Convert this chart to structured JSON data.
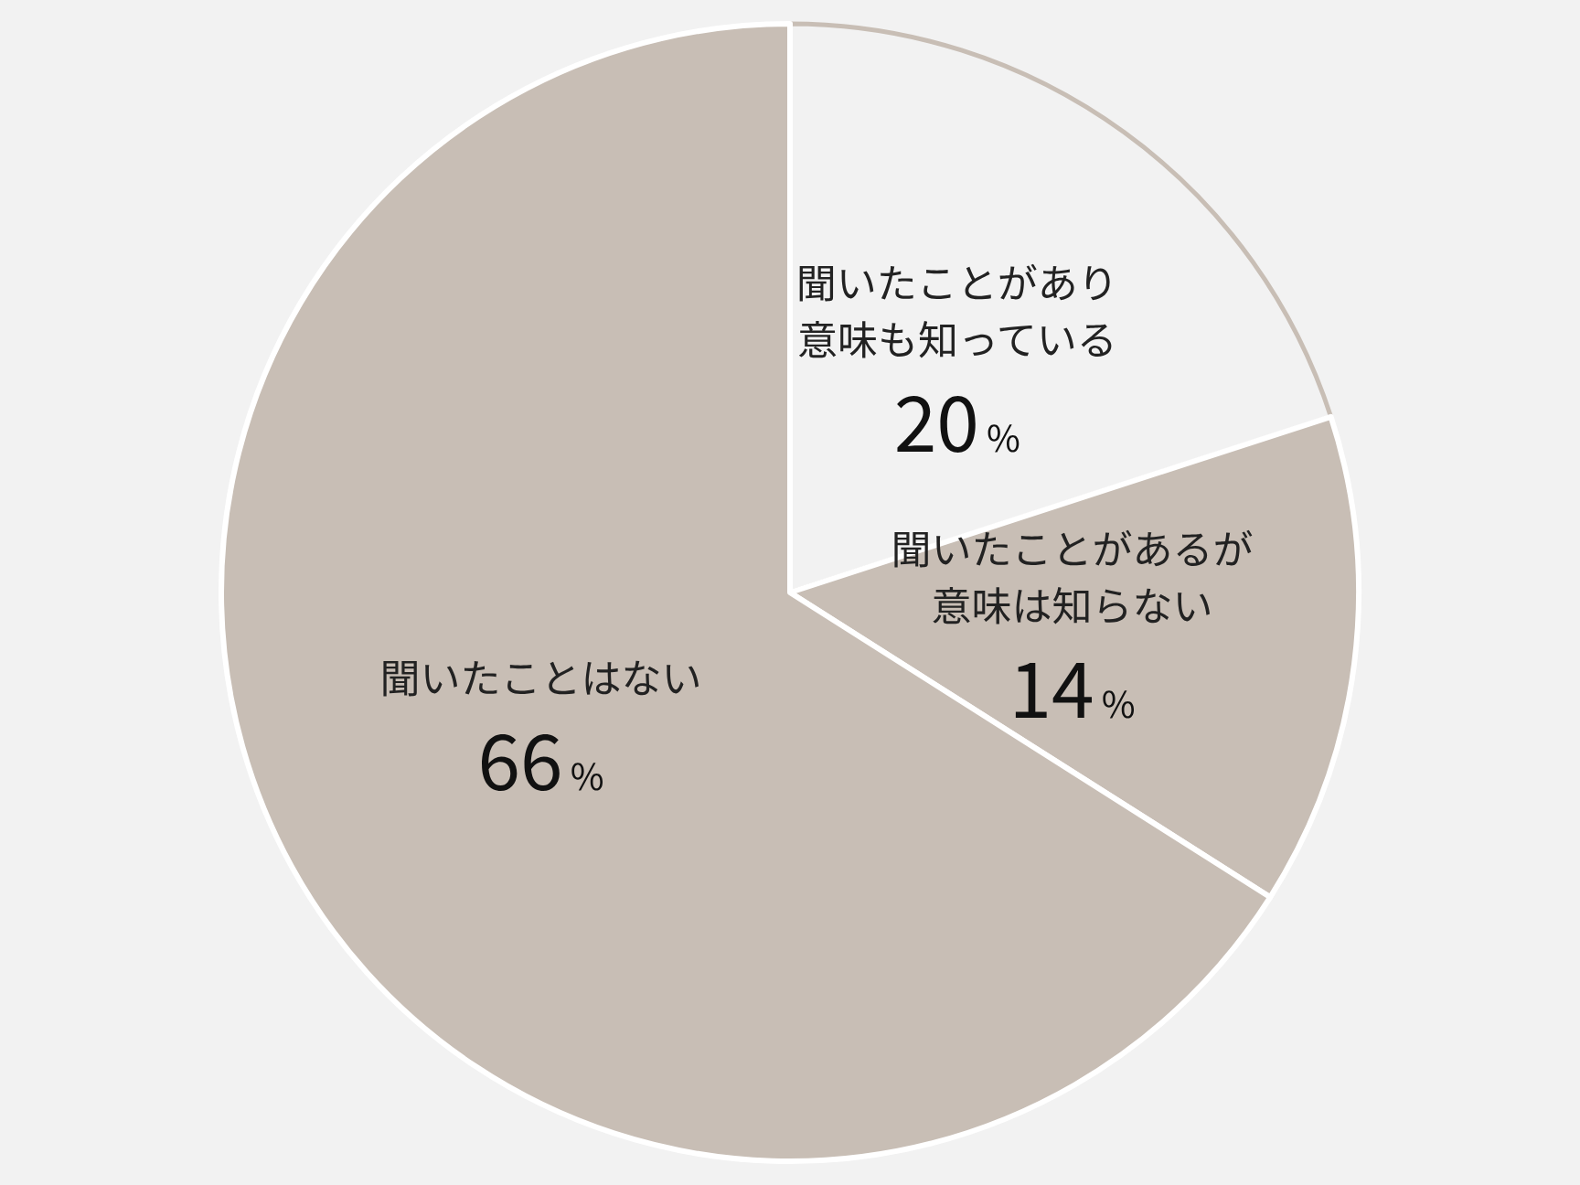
{
  "chart_data": {
    "type": "pie",
    "categories": [
      "聞いたことがあり意味も知っている",
      "聞いたことがあるが意味は知らない",
      "聞いたことはない"
    ],
    "values": [
      20,
      14,
      66
    ],
    "colors": [
      "#f2f2f2",
      "#c8beb5",
      "#c8beb5"
    ],
    "value_labels": [
      "20%",
      "14%",
      "66%"
    ]
  }
}
